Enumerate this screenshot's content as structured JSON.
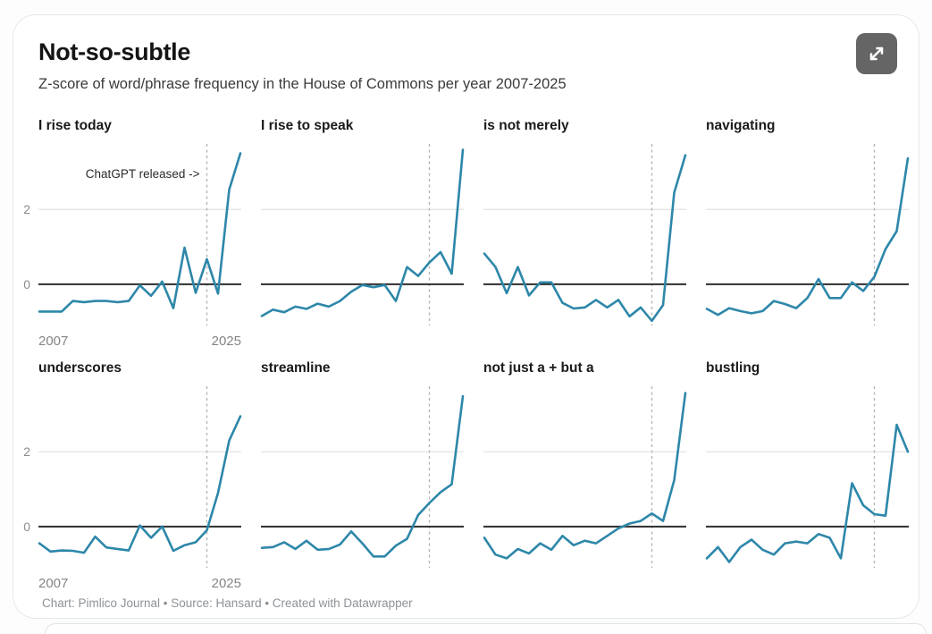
{
  "header": {
    "title": "Not-so-subtle",
    "subtitle": "Z-score of word/phrase frequency in the House of Commons per year 2007-2025"
  },
  "expand_button": {
    "icon": "expand-arrows-icon"
  },
  "footer": {
    "credits": "Chart: Pimlico Journal • Source: Hansard • Created with Datawrapper"
  },
  "chart_data": {
    "type": "line",
    "layout": "small-multiples 2 rows x 4 cols",
    "x_years": [
      2007,
      2008,
      2009,
      2010,
      2011,
      2012,
      2013,
      2014,
      2015,
      2016,
      2017,
      2018,
      2019,
      2020,
      2021,
      2022,
      2023,
      2024,
      2025
    ],
    "xlim": [
      2007,
      2025
    ],
    "ylim": [
      -1.2,
      3.8
    ],
    "y_ticks": [
      2,
      0
    ],
    "x_tick_labels": [
      "2007",
      "2025"
    ],
    "zero_baseline": 0,
    "dashed_vline_x": 2022,
    "grid": "horizontal line at y=2 only, ticks shown on first column only",
    "annotation": {
      "text": "ChatGPT released ->",
      "panel_index": 0,
      "points_to": "dashed line at 2022"
    },
    "line_color": "#2d87a9",
    "panels": [
      {
        "title": "I rise today",
        "values": [
          -0.73,
          -0.73,
          -0.73,
          -0.45,
          -0.48,
          -0.45,
          -0.45,
          -0.48,
          -0.45,
          -0.03,
          -0.31,
          0.07,
          -0.64,
          0.98,
          -0.23,
          0.67,
          -0.25,
          2.53,
          3.5
        ]
      },
      {
        "title": "I rise to speak",
        "values": [
          -0.85,
          -0.68,
          -0.75,
          -0.6,
          -0.66,
          -0.52,
          -0.6,
          -0.45,
          -0.2,
          -0.02,
          -0.08,
          -0.02,
          -0.45,
          0.46,
          0.22,
          0.58,
          0.86,
          0.28,
          3.6
        ]
      },
      {
        "title": "is not merely",
        "values": [
          0.82,
          0.46,
          -0.24,
          0.46,
          -0.3,
          0.05,
          0.05,
          -0.5,
          -0.65,
          -0.62,
          -0.42,
          -0.62,
          -0.42,
          -0.86,
          -0.62,
          -0.98,
          -0.56,
          2.45,
          3.45
        ]
      },
      {
        "title": "navigating",
        "values": [
          -0.66,
          -0.82,
          -0.64,
          -0.72,
          -0.78,
          -0.72,
          -0.45,
          -0.53,
          -0.64,
          -0.37,
          0.14,
          -0.37,
          -0.37,
          0.05,
          -0.18,
          0.2,
          0.94,
          1.42,
          3.37
        ]
      },
      {
        "title": "underscores",
        "values": [
          -0.45,
          -0.67,
          -0.64,
          -0.65,
          -0.7,
          -0.27,
          -0.56,
          -0.6,
          -0.64,
          0.03,
          -0.3,
          0.0,
          -0.65,
          -0.5,
          -0.42,
          -0.1,
          0.9,
          2.3,
          2.95
        ]
      },
      {
        "title": "streamline",
        "values": [
          -0.57,
          -0.55,
          -0.42,
          -0.6,
          -0.38,
          -0.62,
          -0.6,
          -0.48,
          -0.13,
          -0.45,
          -0.8,
          -0.8,
          -0.51,
          -0.33,
          0.31,
          0.63,
          0.92,
          1.13,
          3.49
        ]
      },
      {
        "title": "not just a + but a",
        "values": [
          -0.3,
          -0.75,
          -0.85,
          -0.6,
          -0.72,
          -0.45,
          -0.62,
          -0.25,
          -0.5,
          -0.38,
          -0.45,
          -0.25,
          -0.05,
          0.08,
          0.15,
          0.35,
          0.15,
          1.24,
          3.57
        ]
      },
      {
        "title": "bustling",
        "values": [
          -0.85,
          -0.55,
          -0.95,
          -0.55,
          -0.35,
          -0.62,
          -0.75,
          -0.45,
          -0.4,
          -0.45,
          -0.2,
          -0.3,
          -0.85,
          1.16,
          0.57,
          0.33,
          0.29,
          2.72,
          2.0
        ]
      }
    ]
  },
  "colors": {
    "line": "#2d87a9",
    "zero_axis": "#2e2e2e",
    "gridline": "#e3e3e3",
    "dashed_line": "#b4b4b4",
    "tick_text": "#8c8c8c",
    "card_border": "#e5e8ea",
    "expand_button_bg": "#656565",
    "footer_text": "#8d9297"
  }
}
